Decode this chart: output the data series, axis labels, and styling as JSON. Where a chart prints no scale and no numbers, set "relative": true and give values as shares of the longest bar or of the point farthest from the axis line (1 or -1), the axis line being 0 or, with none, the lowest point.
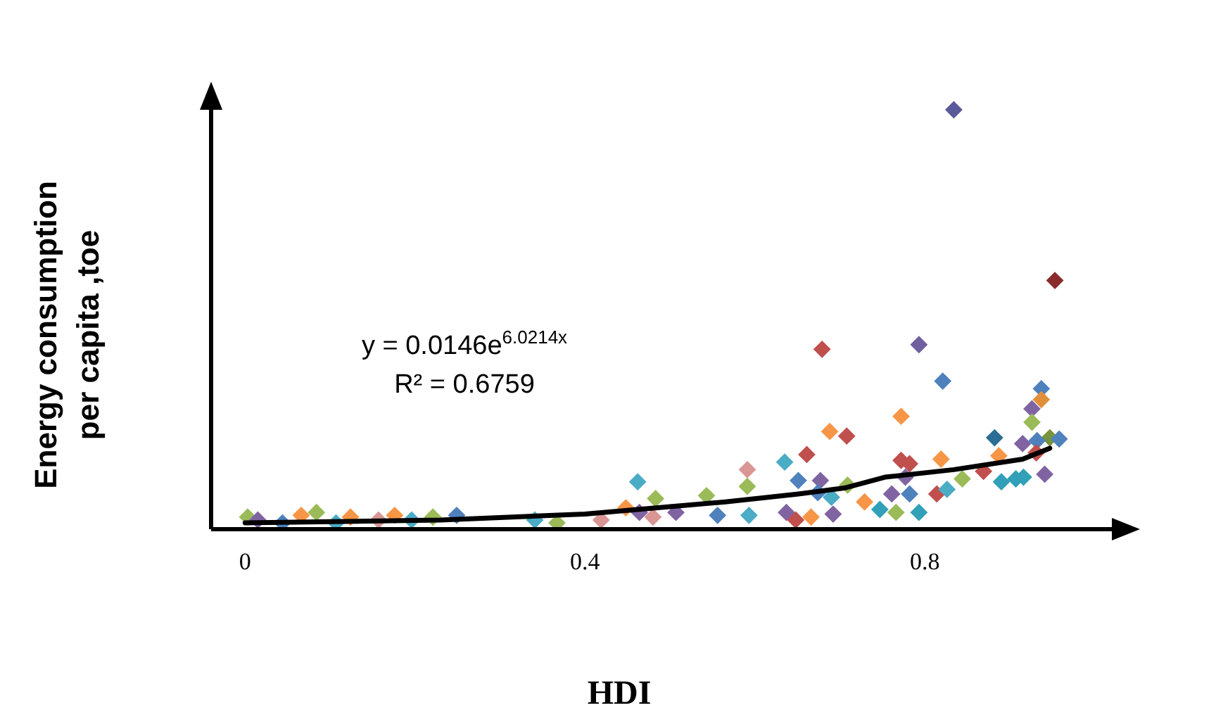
{
  "chart_data": {
    "type": "scatter",
    "xlabel": "HDI",
    "ylabel": "Energy consumption per capita ,toe",
    "annotations": [
      "y = 0.0146e$^{6.0214x}$",
      "R² = 0.6759"
    ],
    "relative": true,
    "xlim": [
      -0.04,
      1.02
    ],
    "xticks": [
      0,
      0.4,
      0.8
    ],
    "tick_labels": "x",
    "marker": "diamond",
    "legend": false,
    "series": [
      {
        "x": [
          0.834,
          0.953,
          0.679,
          0.793,
          0.821,
          0.772,
          0.688,
          0.708,
          0.661,
          0.635,
          0.651,
          0.677,
          0.709,
          0.937,
          0.937,
          0.926,
          0.926,
          0.882,
          0.947,
          0.958,
          0.915,
          0.932,
          0.887,
          0.931,
          0.819,
          0.782,
          0.777,
          0.869,
          0.89,
          0.907,
          0.941,
          0.916,
          0.844,
          0.814,
          0.826,
          0.761,
          0.782,
          0.793,
          0.766,
          0.747,
          0.729,
          0.692,
          0.69,
          0.674,
          0.591,
          0.591,
          0.543,
          0.483,
          0.462,
          0.593,
          0.637,
          0.648,
          0.666,
          0.556,
          0.48,
          0.507,
          0.448,
          0.464,
          0.419,
          0.341,
          0.367,
          0.249,
          0.221,
          0.196,
          0.176,
          0.157,
          0.124,
          0.107,
          0.084,
          0.066,
          0.044,
          0.003,
          0.015,
          0.772
        ],
        "values": [
          1,
          0.593,
          0.429,
          0.44,
          0.353,
          0.269,
          0.233,
          0.222,
          0.178,
          0.16,
          0.116,
          0.116,
          0.105,
          0.335,
          0.309,
          0.287,
          0.255,
          0.218,
          0.218,
          0.215,
          0.204,
          0.211,
          0.175,
          0.182,
          0.167,
          0.156,
          0.124,
          0.138,
          0.113,
          0.12,
          0.131,
          0.124,
          0.12,
          0.084,
          0.095,
          0.084,
          0.084,
          0.04,
          0.04,
          0.047,
          0.065,
          0.036,
          0.076,
          0.087,
          0.142,
          0.102,
          0.08,
          0.073,
          0.113,
          0.033,
          0.04,
          0.022,
          0.029,
          0.033,
          0.029,
          0.04,
          0.051,
          0.04,
          0.022,
          0.022,
          0.015,
          0.033,
          0.029,
          0.022,
          0.033,
          0.022,
          0.029,
          0.015,
          0.04,
          0.033,
          0.015,
          0.029,
          0.022,
          0.164
        ],
        "colors": [
          "#5a5a9a",
          "#8b2c2c",
          "#c0504d",
          "#7060a0",
          "#4f81bd",
          "#f79646",
          "#f79646",
          "#c0504d",
          "#c0504d",
          "#4bacc6",
          "#4f81bd",
          "#8064a2",
          "#9bbb59",
          "#4f81bd",
          "#e0903a",
          "#8064a2",
          "#9bbb59",
          "#2c6d95",
          "#77933c",
          "#4f81bd",
          "#8064a2",
          "#4f81bd",
          "#f79646",
          "#c0504d",
          "#f79646",
          "#c0504d",
          "#8064a2",
          "#c0504d",
          "#31a0b8",
          "#31a0b8",
          "#8064a2",
          "#31a0b8",
          "#9bbb59",
          "#c0504d",
          "#4bacc6",
          "#8064a2",
          "#4f81bd",
          "#31a0b8",
          "#9bbb59",
          "#31a0b8",
          "#f79646",
          "#8064a2",
          "#4bacc6",
          "#4f81bd",
          "#d99694",
          "#9bbb59",
          "#9bbb59",
          "#9bbb59",
          "#4bacc6",
          "#4bacc6",
          "#8064a2",
          "#c0504d",
          "#f79646",
          "#4f81bd",
          "#d99694",
          "#8064a2",
          "#f79646",
          "#8064a2",
          "#d99694",
          "#4bacc6",
          "#9bbb59",
          "#4f81bd",
          "#9bbb59",
          "#4bacc6",
          "#f79646",
          "#d99694",
          "#f79646",
          "#4bacc6",
          "#9bbb59",
          "#f79646",
          "#4f81bd",
          "#9bbb59",
          "#8064a2",
          "#c0504d"
        ]
      },
      {
        "type": "line",
        "color": "#000000",
        "marker": "none",
        "x": [
          0,
          0.23,
          0.4,
          0.565,
          0.651,
          0.705,
          0.753,
          0.834,
          0.915,
          0.947
        ],
        "values": [
          0.015,
          0.022,
          0.036,
          0.065,
          0.084,
          0.098,
          0.124,
          0.142,
          0.167,
          0.193
        ]
      }
    ]
  }
}
